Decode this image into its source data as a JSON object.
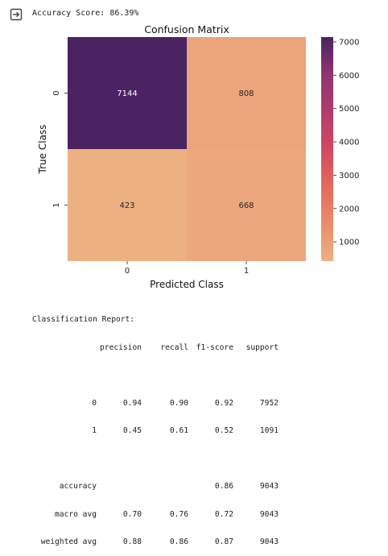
{
  "output": {
    "icon": "output-redirect-icon",
    "accuracy_text": "Accuracy Score: 86.39%"
  },
  "chart_data": {
    "type": "heatmap",
    "title": "Confusion Matrix",
    "xlabel": "Predicted Class",
    "ylabel": "True Class",
    "x_categories": [
      "0",
      "1"
    ],
    "y_categories": [
      "0",
      "1"
    ],
    "values": [
      [
        7144,
        808
      ],
      [
        423,
        668
      ]
    ],
    "colorbar": {
      "ticks": [
        1000,
        2000,
        3000,
        4000,
        5000,
        6000,
        7000
      ],
      "tick_labels": [
        "1000",
        "2000",
        "3000",
        "4000",
        "5000",
        "6000",
        "7000"
      ],
      "range": [
        423,
        7144
      ],
      "colormap": "flare"
    },
    "colors": {
      "low": "#edb081",
      "high": "#4b2362"
    }
  },
  "report": {
    "title": "Classification Report:",
    "headers": [
      "precision",
      "recall",
      "f1-score",
      "support"
    ],
    "class_rows": [
      {
        "label": "0",
        "precision": "0.94",
        "recall": "0.90",
        "f1": "0.92",
        "support": "7952"
      },
      {
        "label": "1",
        "precision": "0.45",
        "recall": "0.61",
        "f1": "0.52",
        "support": "1091"
      }
    ],
    "accuracy_row": {
      "label": "accuracy",
      "f1": "0.86",
      "support": "9043"
    },
    "summary_rows": [
      {
        "label": "macro avg",
        "precision": "0.70",
        "recall": "0.76",
        "f1": "0.72",
        "support": "9043"
      },
      {
        "label": "weighted avg",
        "precision": "0.88",
        "recall": "0.86",
        "f1": "0.87",
        "support": "9043"
      }
    ]
  }
}
